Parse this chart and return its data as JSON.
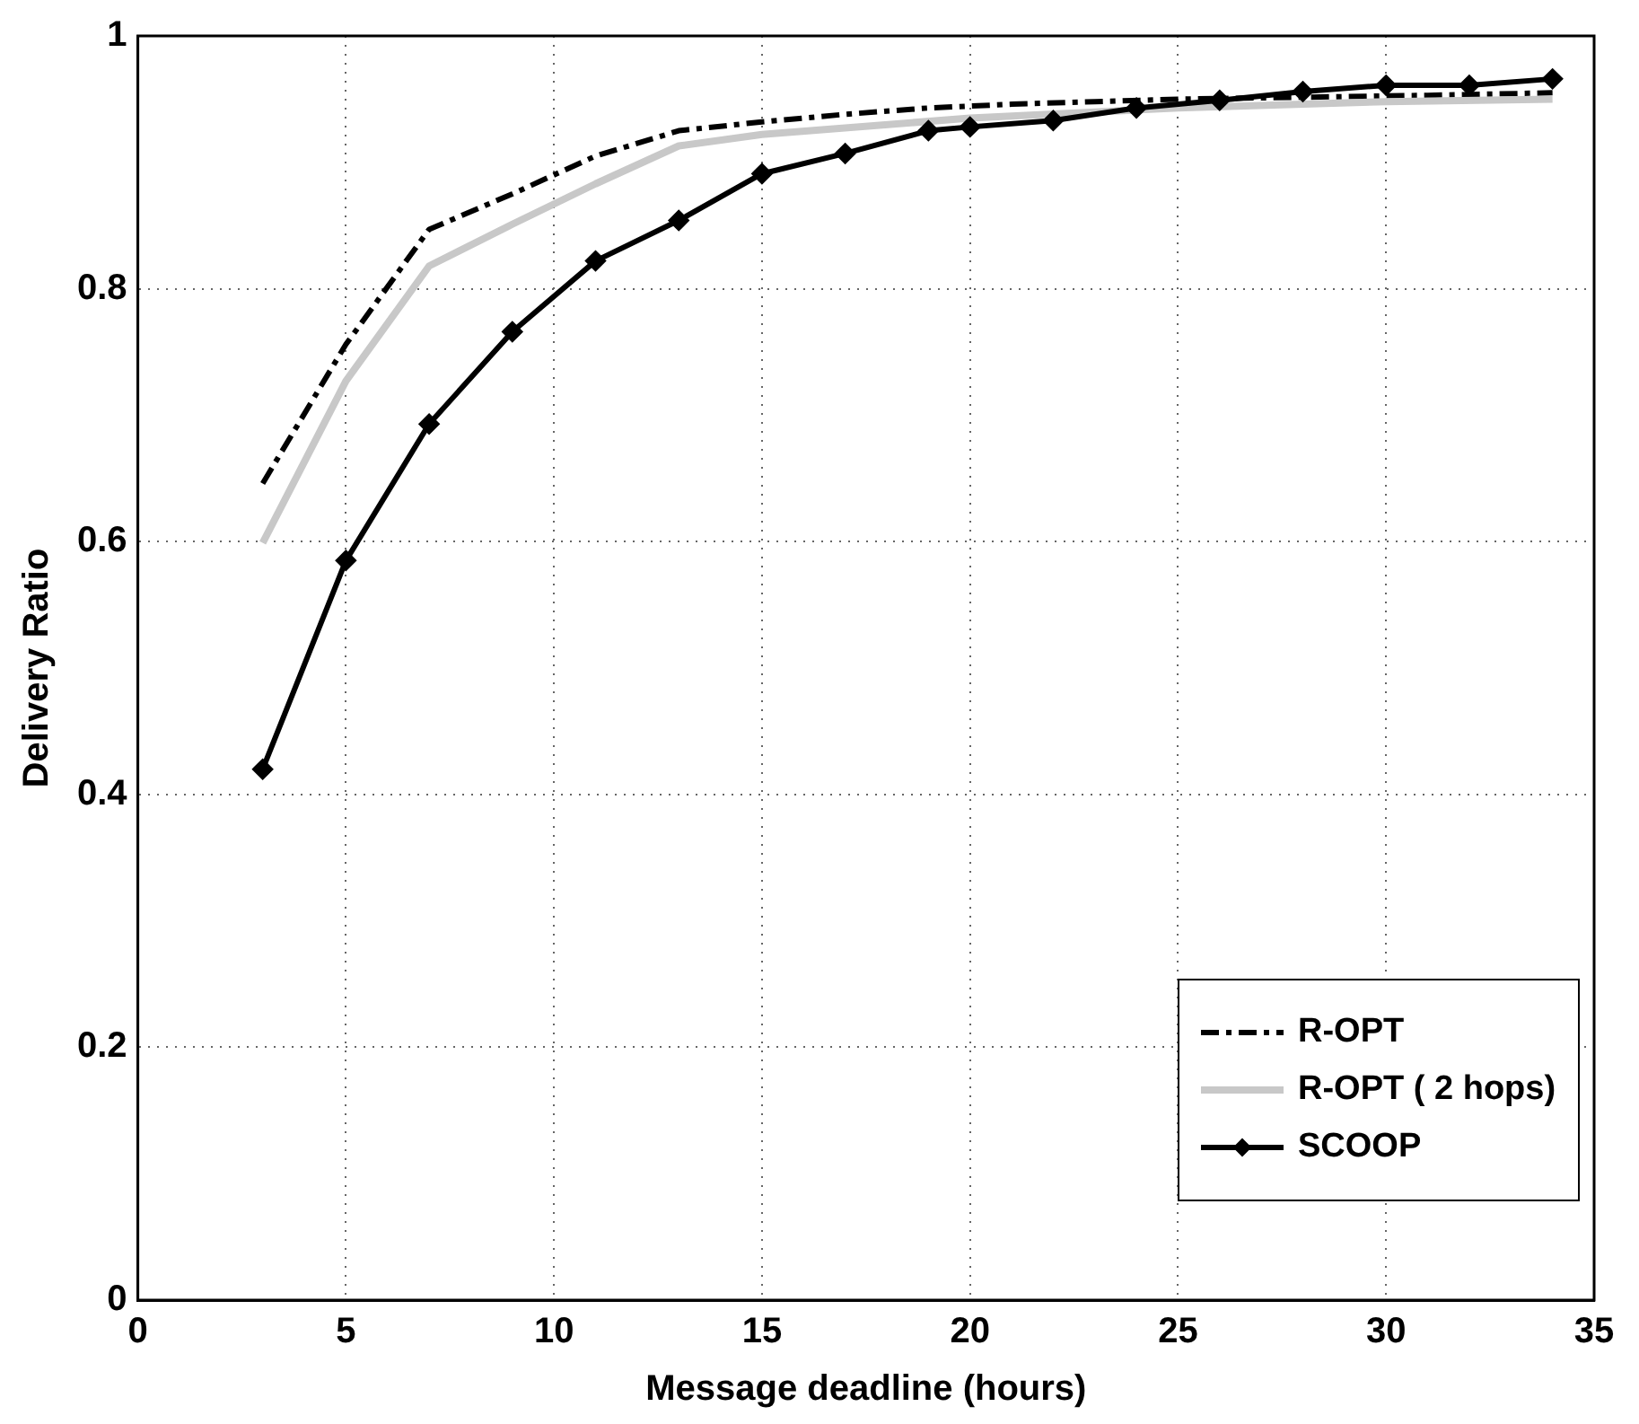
{
  "chart_data": {
    "type": "line",
    "xlabel": "Message deadline (hours)",
    "ylabel": "Delivery Ratio",
    "xlim": [
      0,
      35
    ],
    "xticks": [
      0,
      5,
      10,
      15,
      20,
      25,
      30,
      35
    ],
    "ylim": [
      0,
      1
    ],
    "yticks": [
      0,
      0.2,
      0.4,
      0.6,
      0.8,
      1
    ],
    "grid": true,
    "legend": "bottom right",
    "series": [
      {
        "name": "R-OPT",
        "color": "#000000",
        "line_style": "dashed",
        "marker": "none",
        "x": [
          3,
          5,
          7,
          9,
          11,
          13,
          15,
          17,
          19,
          21,
          23,
          25,
          27,
          29,
          31,
          34
        ],
        "values": [
          0.646,
          0.756,
          0.847,
          0.875,
          0.905,
          0.925,
          0.932,
          0.938,
          0.943,
          0.946,
          0.948,
          0.95,
          0.951,
          0.952,
          0.953,
          0.955
        ]
      },
      {
        "name": "R-OPT ( 2 hops)",
        "color": "#c8c8c8",
        "line_style": "solid",
        "marker": "none",
        "x": [
          3,
          5,
          7,
          9,
          11,
          13,
          15,
          20,
          25,
          30,
          34
        ],
        "values": [
          0.599,
          0.727,
          0.818,
          0.851,
          0.883,
          0.913,
          0.922,
          0.935,
          0.943,
          0.948,
          0.95
        ]
      },
      {
        "name": "SCOOP",
        "color": "#000000",
        "line_style": "solid",
        "marker": "diamond",
        "x": [
          3,
          5,
          7,
          9,
          11,
          13,
          15,
          17,
          19,
          20,
          22,
          24,
          26,
          28,
          30,
          32,
          34
        ],
        "values": [
          0.42,
          0.585,
          0.693,
          0.766,
          0.822,
          0.854,
          0.891,
          0.907,
          0.925,
          0.928,
          0.933,
          0.943,
          0.949,
          0.956,
          0.961,
          0.961,
          0.966
        ]
      }
    ]
  }
}
